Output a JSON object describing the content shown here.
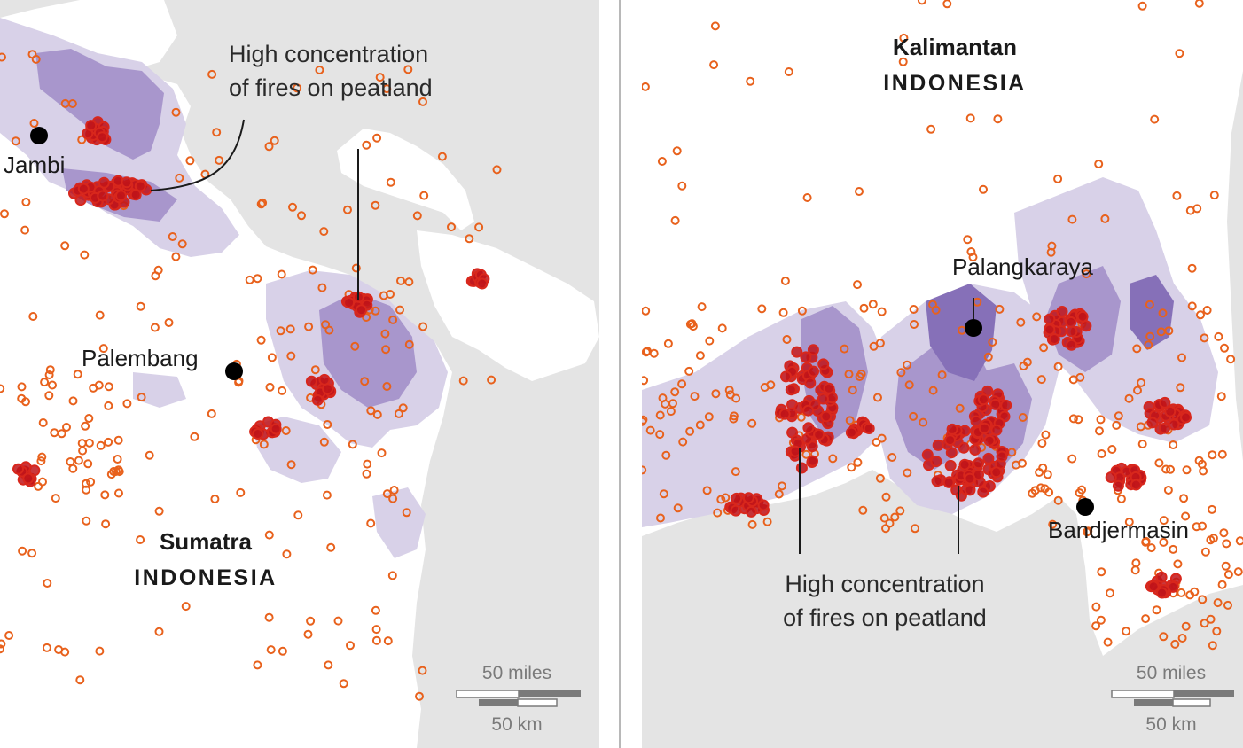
{
  "colors": {
    "sea": "#e4e4e4",
    "land": "#ffffff",
    "peat_light": "#d8d1e8",
    "peat_mid": "#a896cc",
    "peat_dark": "#8670b8",
    "fire_ring": "#e8611c",
    "fire_dense": "#c0141a",
    "city_dot": "#000000",
    "scale_gray": "#7a7a7a"
  },
  "left_map": {
    "region": "Sumatra",
    "country": "INDONESIA",
    "cities": [
      "Jambi",
      "Palembang"
    ],
    "callout": [
      "High concentration",
      "of fires on peatland"
    ],
    "scale_miles": "50 miles",
    "scale_km": "50 km"
  },
  "right_map": {
    "region": "Kalimantan",
    "country": "INDONESIA",
    "cities": [
      "Palangkaraya",
      "Bandjermasin"
    ],
    "callout": [
      "High concentration",
      "of fires on peatland"
    ],
    "scale_miles": "50 miles",
    "scale_km": "50 km"
  }
}
